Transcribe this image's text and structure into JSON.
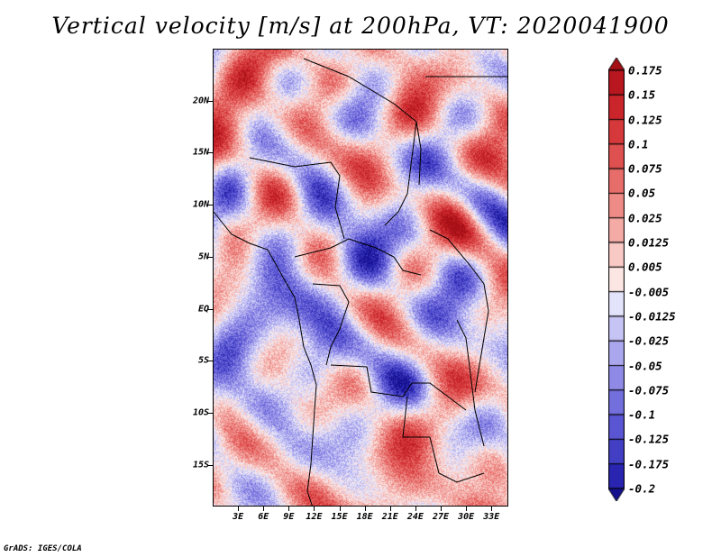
{
  "title": "Vertical velocity [m/s] at 200hPa, VT: 2020041900",
  "footer": "GrADS: IGES/COLA",
  "map": {
    "lon_range": [
      0,
      35
    ],
    "lat_range": [
      -19,
      25
    ],
    "lat_labels": [
      {
        "lat": 20,
        "text": "20N"
      },
      {
        "lat": 15,
        "text": "15N"
      },
      {
        "lat": 10,
        "text": "10N"
      },
      {
        "lat": 5,
        "text": "5N"
      },
      {
        "lat": 0,
        "text": "EQ"
      },
      {
        "lat": -5,
        "text": "5S"
      },
      {
        "lat": -10,
        "text": "10S"
      },
      {
        "lat": -15,
        "text": "15S"
      }
    ],
    "lon_labels": [
      {
        "lon": 3,
        "text": "3E"
      },
      {
        "lon": 6,
        "text": "6E"
      },
      {
        "lon": 9,
        "text": "9E"
      },
      {
        "lon": 12,
        "text": "12E"
      },
      {
        "lon": 15,
        "text": "15E"
      },
      {
        "lon": 18,
        "text": "18E"
      },
      {
        "lon": 21,
        "text": "21E"
      },
      {
        "lon": 24,
        "text": "24E"
      },
      {
        "lon": 27,
        "text": "27E"
      },
      {
        "lon": 30,
        "text": "30E"
      },
      {
        "lon": 33,
        "text": "33E"
      }
    ]
  },
  "colorbar": {
    "labels": [
      "0.175",
      "0.15",
      "0.125",
      "0.1",
      "0.075",
      "0.05",
      "0.025",
      "0.0125",
      "0.005",
      "-0.005",
      "-0.0125",
      "-0.025",
      "-0.05",
      "-0.075",
      "-0.1",
      "-0.125",
      "-0.175",
      "-0.2"
    ],
    "colors": [
      "#a50f15",
      "#b8171f",
      "#c9252b",
      "#d6393b",
      "#df5150",
      "#e76d6a",
      "#ee8b86",
      "#f4aaa5",
      "#f8c9c5",
      "#fbe6e3",
      "#e3e3fb",
      "#c6c4f4",
      "#aba7ee",
      "#8f8ae6",
      "#736fdd",
      "#5a55d2",
      "#423fc4",
      "#2a25b0",
      "#15108f"
    ]
  }
}
